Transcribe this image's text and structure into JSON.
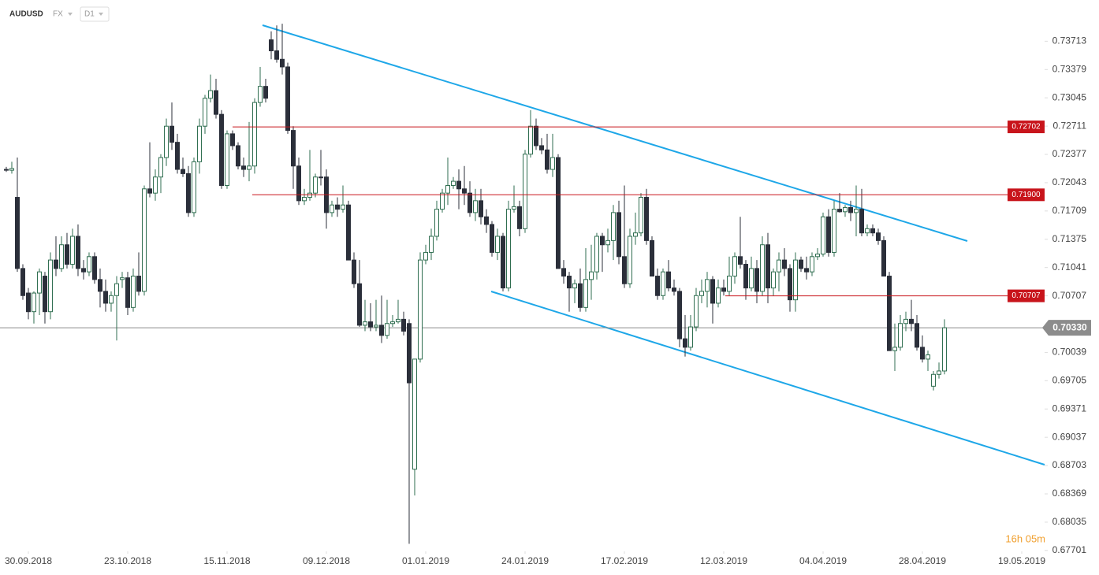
{
  "chart_data": {
    "type": "candlestick",
    "title": "AUDUSD",
    "market": "FX",
    "interval": "D1",
    "countdown": "16h 05m",
    "up_color": "#ffffff",
    "up_border": "#2f6e50",
    "down_color": "#2b2f3a",
    "level_color": "#c8141b",
    "last_color": "#8c8c8c",
    "trend_color": "#1ea7e8",
    "ylim": [
      0.6769,
      0.742
    ],
    "yticks": [
      0.73713,
      0.73379,
      0.73045,
      0.72711,
      0.72377,
      0.72043,
      0.71709,
      0.71375,
      0.71041,
      0.70707,
      0.70039,
      0.69705,
      0.69371,
      0.69037,
      0.68703,
      0.68369,
      0.68035,
      0.67701
    ],
    "xlim": [
      -1.14,
      188.14
    ],
    "xticks": [
      {
        "value": 4,
        "label": "30.09.2018"
      },
      {
        "value": 22,
        "label": "23.10.2018"
      },
      {
        "value": 40,
        "label": "15.11.2018"
      },
      {
        "value": 58,
        "label": "09.12.2018"
      },
      {
        "value": 76,
        "label": "01.01.2019"
      },
      {
        "value": 94,
        "label": "24.01.2019"
      },
      {
        "value": 112,
        "label": "17.02.2019"
      },
      {
        "value": 130,
        "label": "12.03.2019"
      },
      {
        "value": 148,
        "label": "04.04.2019"
      },
      {
        "value": 166,
        "label": "28.04.2019"
      },
      {
        "value": 184,
        "label": "19.05.2019"
      }
    ],
    "levels": [
      {
        "value": 0.72702,
        "label": "0.72702"
      },
      {
        "value": 0.719,
        "label": "0.71900"
      },
      {
        "value": 0.70707,
        "label": "0.70707"
      }
    ],
    "last_price": {
      "value": 0.7033,
      "label": "0.70330"
    },
    "open": [
      0.722,
      0.7219,
      0.7187,
      0.7103,
      0.7074,
      0.7052,
      0.7074,
      0.7094,
      0.7052,
      0.7113,
      0.7103,
      0.7131,
      0.7108,
      0.7141,
      0.7103,
      0.7099,
      0.7117,
      0.709,
      0.7076,
      0.7062,
      0.7071,
      0.709,
      0.7092,
      0.7057,
      0.7094,
      0.7076,
      0.7197,
      0.7192,
      0.7211,
      0.7234,
      0.7271,
      0.7252,
      0.722,
      0.7215,
      0.7169,
      0.7229,
      0.7271,
      0.7304,
      0.7313,
      0.7285,
      0.7201,
      0.7262,
      0.7248,
      0.7224,
      0.722,
      0.7224,
      0.7299,
      0.7318,
      0.7373,
      0.736,
      0.735,
      0.7341,
      0.7266,
      0.7224,
      0.7183,
      0.7187,
      0.7192,
      0.7211,
      0.7211,
      0.7169,
      0.7178,
      0.7173,
      0.7178,
      0.7113,
      0.7085,
      0.7036,
      0.704,
      0.7034,
      0.7036,
      0.7024,
      0.7038,
      0.704,
      0.7043,
      0.7038,
      0.6866,
      0.6996,
      0.7113,
      0.7122,
      0.7141,
      0.7173,
      0.7192,
      0.7201,
      0.7206,
      0.7197,
      0.7192,
      0.7169,
      0.7183,
      0.7164,
      0.7155,
      0.7122,
      0.7141,
      0.708,
      0.7173,
      0.7176,
      0.715,
      0.7238,
      0.7271,
      0.7248,
      0.7243,
      0.722,
      0.7234,
      0.7103,
      0.7094,
      0.708,
      0.7085,
      0.7057,
      0.709,
      0.7099,
      0.7141,
      0.7131,
      0.7136,
      0.7169,
      0.7117,
      0.7085,
      0.7141,
      0.7145,
      0.7187,
      0.7136,
      0.7094,
      0.7071,
      0.7099,
      0.708,
      0.7076,
      0.702,
      0.701,
      0.7034,
      0.7071,
      0.7076,
      0.709,
      0.7062,
      0.708,
      0.7076,
      0.7094,
      0.7117,
      0.7108,
      0.708,
      0.7103,
      0.7076,
      0.7131,
      0.708,
      0.7099,
      0.7113,
      0.7103,
      0.7066,
      0.7113,
      0.7103,
      0.7099,
      0.7117,
      0.712,
      0.7164,
      0.7122,
      0.7173,
      0.717,
      0.7175,
      0.7169,
      0.7173,
      0.7145,
      0.715,
      0.7145,
      0.7136,
      0.7094,
      0.7006,
      0.701,
      0.7038,
      0.7043,
      0.7038,
      0.701,
      0.6996,
      0.6964,
      0.6978,
      0.6982
    ],
    "high": [
      0.7223,
      0.7229,
      0.7234,
      0.7108,
      0.708,
      0.7076,
      0.7103,
      0.7099,
      0.7122,
      0.7141,
      0.7141,
      0.7145,
      0.715,
      0.7155,
      0.7113,
      0.7122,
      0.7122,
      0.7103,
      0.709,
      0.7076,
      0.7094,
      0.7099,
      0.7099,
      0.7103,
      0.7122,
      0.7201,
      0.7252,
      0.722,
      0.7238,
      0.728,
      0.7299,
      0.7262,
      0.7234,
      0.7224,
      0.7234,
      0.728,
      0.7308,
      0.7332,
      0.7327,
      0.729,
      0.7266,
      0.7266,
      0.7252,
      0.7234,
      0.7276,
      0.7304,
      0.7341,
      0.7327,
      0.7383,
      0.739,
      0.7392,
      0.7346,
      0.7271,
      0.7234,
      0.7197,
      0.7243,
      0.7215,
      0.7243,
      0.722,
      0.7183,
      0.7187,
      0.7201,
      0.7183,
      0.7122,
      0.7113,
      0.7066,
      0.7062,
      0.7066,
      0.7071,
      0.7066,
      0.7048,
      0.7066,
      0.7052,
      0.7043,
      0.6996,
      0.7122,
      0.7131,
      0.715,
      0.7183,
      0.7197,
      0.7234,
      0.7211,
      0.722,
      0.7224,
      0.7206,
      0.7197,
      0.7197,
      0.7173,
      0.7159,
      0.715,
      0.7145,
      0.7183,
      0.7201,
      0.7183,
      0.7243,
      0.729,
      0.728,
      0.7257,
      0.7262,
      0.7262,
      0.7238,
      0.7113,
      0.7099,
      0.709,
      0.7103,
      0.7127,
      0.7131,
      0.7145,
      0.7145,
      0.715,
      0.7178,
      0.7183,
      0.7201,
      0.715,
      0.7169,
      0.7192,
      0.7197,
      0.7141,
      0.7103,
      0.7103,
      0.7113,
      0.709,
      0.708,
      0.7048,
      0.7048,
      0.708,
      0.709,
      0.7099,
      0.7094,
      0.709,
      0.709,
      0.7117,
      0.7122,
      0.7164,
      0.7113,
      0.7117,
      0.7113,
      0.7141,
      0.7145,
      0.7103,
      0.7122,
      0.7127,
      0.7108,
      0.7122,
      0.7117,
      0.7117,
      0.7122,
      0.7127,
      0.7169,
      0.7173,
      0.7183,
      0.7192,
      0.7178,
      0.7183,
      0.7201,
      0.7197,
      0.7155,
      0.7155,
      0.715,
      0.7141,
      0.7099,
      0.7038,
      0.7048,
      0.7052,
      0.7066,
      0.7048,
      0.7024,
      0.7006,
      0.6982,
      0.6992,
      0.7043
    ],
    "low": [
      0.7217,
      0.7215,
      0.7099,
      0.7066,
      0.7043,
      0.7038,
      0.7048,
      0.7038,
      0.7043,
      0.7094,
      0.7099,
      0.7103,
      0.7103,
      0.7094,
      0.709,
      0.7094,
      0.7085,
      0.7057,
      0.7052,
      0.7052,
      0.7018,
      0.708,
      0.7048,
      0.7052,
      0.7071,
      0.7071,
      0.7187,
      0.7183,
      0.7192,
      0.7224,
      0.7243,
      0.7215,
      0.7211,
      0.7164,
      0.7164,
      0.7215,
      0.7262,
      0.7299,
      0.728,
      0.7197,
      0.7197,
      0.7243,
      0.722,
      0.7211,
      0.7206,
      0.7215,
      0.7294,
      0.7299,
      0.735,
      0.7346,
      0.7332,
      0.7262,
      0.7197,
      0.7178,
      0.7178,
      0.7183,
      0.7187,
      0.7201,
      0.715,
      0.7164,
      0.7164,
      0.7169,
      0.7113,
      0.708,
      0.7034,
      0.7029,
      0.7029,
      0.7029,
      0.7015,
      0.702,
      0.7034,
      0.7038,
      0.7024,
      0.6778,
      0.6835,
      0.6992,
      0.7108,
      0.7113,
      0.7136,
      0.7169,
      0.7178,
      0.7197,
      0.7173,
      0.7178,
      0.7164,
      0.7159,
      0.7155,
      0.7145,
      0.7117,
      0.7113,
      0.7076,
      0.7076,
      0.7169,
      0.7141,
      0.7145,
      0.7234,
      0.7243,
      0.7238,
      0.7215,
      0.7211,
      0.7103,
      0.7085,
      0.7052,
      0.7062,
      0.7052,
      0.7052,
      0.7066,
      0.709,
      0.7099,
      0.7122,
      0.7113,
      0.7108,
      0.708,
      0.708,
      0.7131,
      0.7141,
      0.7131,
      0.7094,
      0.7066,
      0.7066,
      0.7076,
      0.7071,
      0.701,
      0.6999,
      0.7006,
      0.7029,
      0.7062,
      0.7057,
      0.7038,
      0.7057,
      0.7071,
      0.7071,
      0.7085,
      0.7103,
      0.7066,
      0.7076,
      0.7062,
      0.7071,
      0.7062,
      0.7071,
      0.7076,
      0.7094,
      0.7052,
      0.7052,
      0.7099,
      0.709,
      0.7094,
      0.7113,
      0.7117,
      0.7117,
      0.7117,
      0.7169,
      0.7164,
      0.7159,
      0.7141,
      0.7141,
      0.7141,
      0.7141,
      0.7131,
      0.7094,
      0.7006,
      0.6982,
      0.7006,
      0.7029,
      0.7029,
      0.7006,
      0.6992,
      0.6982,
      0.6959,
      0.6973,
      0.6978
    ],
    "close": [
      0.7219,
      0.7221,
      0.7103,
      0.7071,
      0.7052,
      0.7074,
      0.7099,
      0.7052,
      0.7113,
      0.7103,
      0.7131,
      0.7108,
      0.7141,
      0.7103,
      0.7099,
      0.7117,
      0.709,
      0.7076,
      0.7062,
      0.7071,
      0.7085,
      0.7092,
      0.7057,
      0.7094,
      0.7076,
      0.7197,
      0.7192,
      0.7211,
      0.7234,
      0.7271,
      0.7252,
      0.722,
      0.7215,
      0.7169,
      0.7229,
      0.7271,
      0.7304,
      0.7313,
      0.7285,
      0.7201,
      0.7262,
      0.7248,
      0.7224,
      0.722,
      0.7224,
      0.7299,
      0.7318,
      0.7304,
      0.736,
      0.735,
      0.7341,
      0.7266,
      0.7224,
      0.7183,
      0.7187,
      0.7192,
      0.7211,
      0.7211,
      0.7169,
      0.7178,
      0.7173,
      0.7178,
      0.7113,
      0.7085,
      0.7036,
      0.704,
      0.7034,
      0.7036,
      0.7024,
      0.7038,
      0.704,
      0.7043,
      0.7029,
      0.6968,
      0.6996,
      0.7113,
      0.7122,
      0.7141,
      0.7173,
      0.7192,
      0.7201,
      0.7206,
      0.7197,
      0.7192,
      0.7169,
      0.7183,
      0.7164,
      0.7155,
      0.7122,
      0.7141,
      0.708,
      0.7173,
      0.7176,
      0.715,
      0.7238,
      0.7271,
      0.7248,
      0.7243,
      0.722,
      0.7234,
      0.7103,
      0.7094,
      0.708,
      0.7085,
      0.7057,
      0.709,
      0.7099,
      0.7141,
      0.7131,
      0.7136,
      0.7169,
      0.7117,
      0.7085,
      0.7141,
      0.7145,
      0.7187,
      0.7136,
      0.7094,
      0.7071,
      0.7099,
      0.708,
      0.7076,
      0.702,
      0.701,
      0.7034,
      0.7071,
      0.7076,
      0.709,
      0.7062,
      0.708,
      0.7076,
      0.7094,
      0.7117,
      0.7108,
      0.708,
      0.7103,
      0.7076,
      0.7131,
      0.708,
      0.7099,
      0.7113,
      0.7103,
      0.7066,
      0.7113,
      0.7103,
      0.7099,
      0.7117,
      0.712,
      0.7164,
      0.7122,
      0.7173,
      0.717,
      0.7175,
      0.7169,
      0.7173,
      0.7145,
      0.715,
      0.7145,
      0.7136,
      0.7094,
      0.7006,
      0.701,
      0.7038,
      0.7043,
      0.7038,
      0.701,
      0.6996,
      0.7001,
      0.6978,
      0.6982,
      0.7033
    ]
  }
}
